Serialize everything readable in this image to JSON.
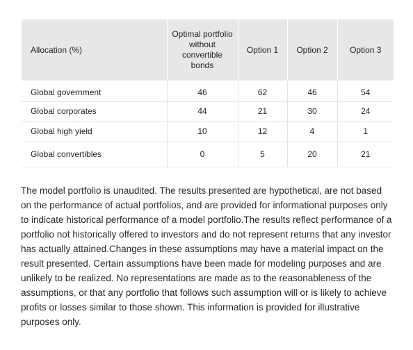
{
  "table": {
    "headers": [
      "Allocation (%)",
      "Optimal portfolio without convertible bonds",
      "Option 1",
      "Option 2",
      "Option 3"
    ],
    "rows": [
      {
        "label": "Global government",
        "values": [
          "46",
          "62",
          "46",
          "54"
        ]
      },
      {
        "label": "Global corporates",
        "values": [
          "44",
          "21",
          "30",
          "24"
        ]
      },
      {
        "label": "Global high yield",
        "values": [
          "10",
          "12",
          "4",
          "1"
        ]
      },
      {
        "label": "Global convertibles",
        "values": [
          "0",
          "5",
          "20",
          "21"
        ]
      }
    ]
  },
  "disclaimer": "The model portfolio is unaudited. The results presented are hypothetical, are not based on the performance of actual portfolios, and are provided for informational purposes only to indicate historical performance of a model portfolio.The results reflect performance of a portfolio not historically offered to investors and do not represent returns that any investor has actually attained.Changes in these assumptions may have a material impact on the result presented. Certain assumptions have been made for modeling purposes and are unlikely to be realized. No representations are made as to the reasonableness of the assumptions, or that any portfolio that follows such assumption will or is likely to achieve profits or losses similar to those shown. This information is provided for illustrative purposes only."
}
